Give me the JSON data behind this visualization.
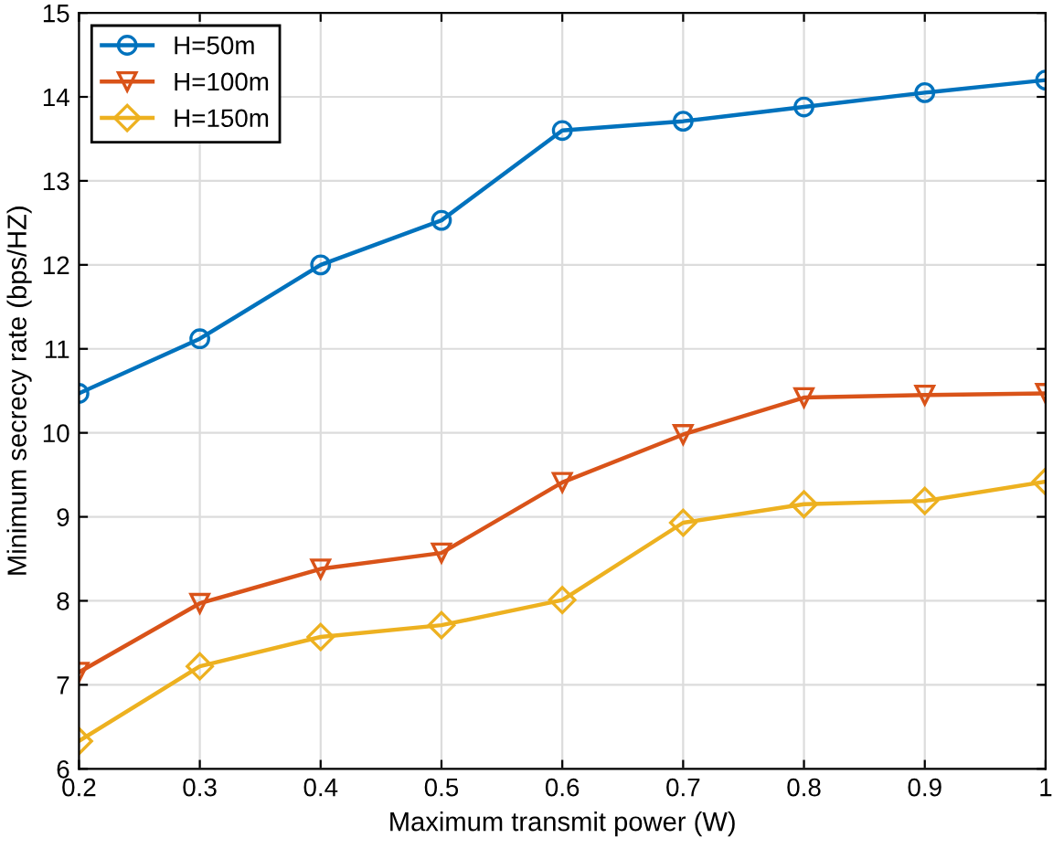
{
  "chart_data": {
    "type": "line",
    "xlabel": "Maximum transmit power (W)",
    "ylabel": "Minimum secrecy rate (bps/HZ)",
    "x": [
      0.2,
      0.3,
      0.4,
      0.5,
      0.6,
      0.7,
      0.8,
      0.9,
      1
    ],
    "series": [
      {
        "name": "H=50m",
        "color": "#0072bd",
        "marker": "circle",
        "values": [
          10.47,
          11.12,
          12.0,
          12.53,
          13.6,
          13.71,
          13.88,
          14.05,
          14.2
        ]
      },
      {
        "name": "H=100m",
        "color": "#d95319",
        "marker": "triangle",
        "values": [
          7.15,
          7.97,
          8.38,
          8.57,
          9.41,
          9.98,
          10.42,
          10.45,
          10.47
        ]
      },
      {
        "name": "H=150m",
        "color": "#edb120",
        "marker": "diamond",
        "values": [
          6.33,
          7.22,
          7.57,
          7.71,
          8.01,
          8.93,
          9.15,
          9.19,
          9.42
        ]
      }
    ],
    "xlim": [
      0.2,
      1
    ],
    "xticks": [
      0.2,
      0.3,
      0.4,
      0.5,
      0.6,
      0.7,
      0.8,
      0.9,
      1
    ],
    "ylim": [
      6,
      15
    ],
    "yticks": [
      6,
      7,
      8,
      9,
      10,
      11,
      12,
      13,
      14,
      15
    ],
    "grid": true,
    "legend": "top left",
    "line_style": "solid"
  }
}
